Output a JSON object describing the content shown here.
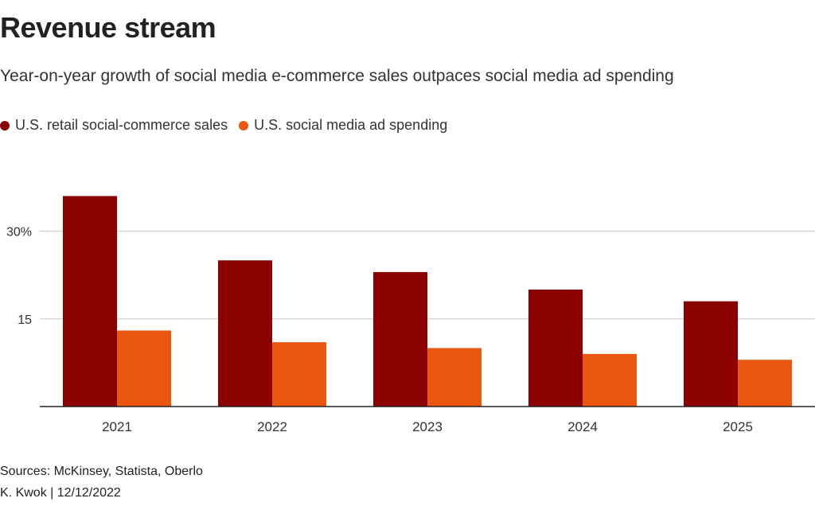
{
  "title": "Revenue stream",
  "subtitle": "Year-on-year growth of social media e-commerce sales outpaces social media ad spending",
  "sources": "Sources: McKinsey, Statista, Oberlo",
  "credit": "K. Kwok | 12/12/2022",
  "colors": {
    "series1": "#8b0000",
    "series2": "#e8560f"
  },
  "chart_data": {
    "type": "bar",
    "categories": [
      "2021",
      "2022",
      "2023",
      "2024",
      "2025"
    ],
    "series": [
      {
        "name": "U.S. retail social-commerce sales",
        "values": [
          36,
          25,
          23,
          20,
          18
        ]
      },
      {
        "name": "U.S. social media ad spending",
        "values": [
          13,
          11,
          10,
          9,
          8
        ]
      }
    ],
    "y_ticks": [
      15,
      30
    ],
    "y_tick_labels": [
      "15",
      "30%"
    ],
    "ylim": [
      0,
      37
    ],
    "grid": true,
    "legend_position": "top-left"
  }
}
